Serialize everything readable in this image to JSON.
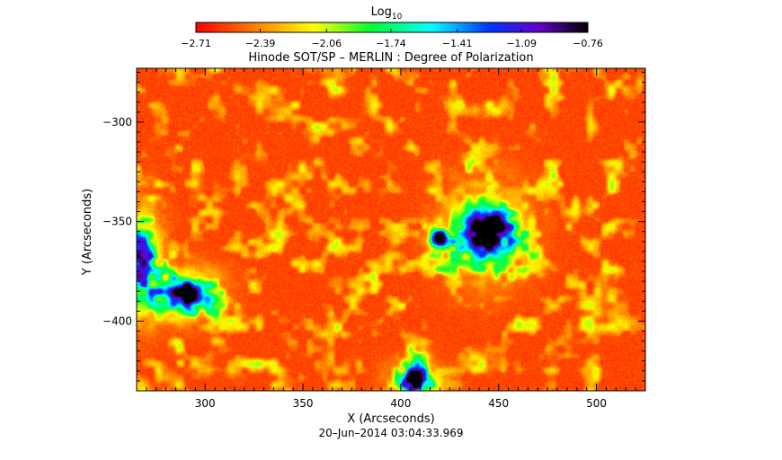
{
  "chart_data": {
    "type": "heatmap",
    "title": "Hinode SOT/SP – MERLIN : Degree of Polarization",
    "xlabel": "X (Arcseconds)",
    "ylabel": "Y (Arcseconds)",
    "xlim": [
      265,
      525
    ],
    "ylim": [
      -435,
      -273
    ],
    "x_ticks": [
      300,
      350,
      400,
      450,
      500
    ],
    "y_ticks": [
      -300,
      -350,
      -400
    ],
    "x_tick_labels": [
      "300",
      "350",
      "400",
      "450",
      "500"
    ],
    "y_tick_labels": [
      "−300",
      "−350",
      "−400"
    ],
    "colorbar": {
      "label_main": "Log",
      "label_sub": "10",
      "min": -2.71,
      "max": -0.76,
      "tick_values": [
        -2.71,
        -2.39,
        -2.06,
        -1.74,
        -1.41,
        -1.09,
        -0.76
      ],
      "tick_labels": [
        "−2.71",
        "−2.39",
        "−2.06",
        "−1.74",
        "−1.41",
        "−1.09",
        "−0.76"
      ],
      "colormap": "rainbow-reversed"
    },
    "features": [
      {
        "x": 443,
        "y": -355,
        "value": -0.85,
        "sigma_x": 8,
        "sigma_y": 9
      },
      {
        "x": 420,
        "y": -358,
        "value": -1.1,
        "sigma_x": 2.5,
        "sigma_y": 3
      },
      {
        "x": 290,
        "y": -386,
        "value": -1.0,
        "sigma_x": 7,
        "sigma_y": 5
      },
      {
        "x": 407,
        "y": -430,
        "value": -1.1,
        "sigma_x": 5,
        "sigma_y": 4
      },
      {
        "x": 268,
        "y": -370,
        "value": -1.4,
        "sigma_x": 4,
        "sigma_y": 10
      }
    ],
    "background_value": -2.55,
    "timestamp": "20–Jun–2014 03:04:33.969"
  }
}
